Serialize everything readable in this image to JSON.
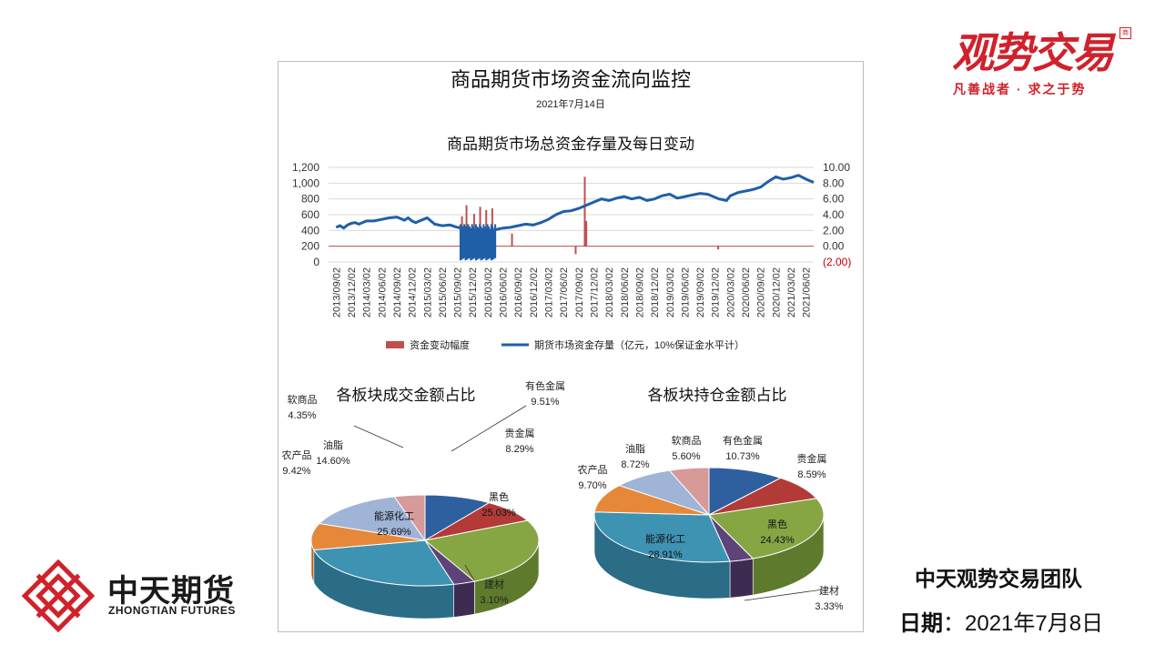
{
  "brand": {
    "name": "观势交易",
    "slogan": "凡善战者 · 求之于势",
    "tm": "商"
  },
  "company": {
    "name_cn": "中天期货",
    "name_en": "ZHONGTIAN FUTURES"
  },
  "footer": {
    "team": "中天观势交易团队",
    "date_label": "日期",
    "date_sep": "：",
    "date_value": "2021年7月8日"
  },
  "report": {
    "title": "商品期货市场资金流向监控",
    "date": "2021年7月14日"
  },
  "colors": {
    "brand_red": "#d1212b",
    "line_blue": "#1f5fa8",
    "bar_red": "#c0504d"
  },
  "chart_data": [
    {
      "type": "line",
      "title": "商品期货市场总资金存量及每日变动",
      "x_ticks": [
        "2013/09/02",
        "2013/12/02",
        "2014/03/02",
        "2014/06/02",
        "2014/09/02",
        "2014/12/02",
        "2015/03/02",
        "2015/06/02",
        "2015/09/02",
        "2015/12/02",
        "2016/03/02",
        "2016/06/02",
        "2016/09/02",
        "2016/12/02",
        "2017/03/02",
        "2017/06/02",
        "2017/09/02",
        "2017/12/02",
        "2018/03/02",
        "2018/06/02",
        "2018/09/02",
        "2018/12/02",
        "2019/03/02",
        "2019/06/02",
        "2019/09/02",
        "2019/12/02",
        "2020/03/02",
        "2020/06/02",
        "2020/09/02",
        "2020/12/02",
        "2021/03/02",
        "2021/06/02"
      ],
      "y_left": {
        "ticks": [
          "0",
          "200",
          "400",
          "600",
          "800",
          "1,000",
          "1,200"
        ],
        "ylim": [
          0,
          1200
        ]
      },
      "y_right": {
        "ticks": [
          "(2.00)",
          "0.00",
          "2.00",
          "4.00",
          "6.00",
          "8.00",
          "10.00"
        ],
        "ylim": [
          -2,
          10
        ]
      },
      "legend": [
        "资金变动幅度",
        "期货市场资金存量（亿元，10%保证金水平计）"
      ],
      "series": [
        {
          "name": "期货市场资金存量（亿元，10%保证金水平计）",
          "axis": "left",
          "x": [
            0,
            0.25,
            0.5,
            0.75,
            1,
            1.25,
            1.5,
            2,
            2.5,
            3,
            3.5,
            4,
            4.25,
            4.5,
            4.75,
            5,
            5.25,
            5.5,
            5.75,
            6,
            6.25,
            6.5,
            7,
            7.5,
            8,
            8.25,
            8.5,
            9,
            9.5,
            10,
            10.5,
            11,
            11.5,
            12,
            12.5,
            13,
            13.5,
            14,
            14.5,
            15,
            15.5,
            16,
            16.5,
            17,
            17.5,
            18,
            18.5,
            19,
            19.5,
            20,
            20.5,
            21,
            21.25,
            21.5,
            22,
            22.5,
            23,
            23.5,
            24,
            24.5,
            25,
            25.25,
            25.5,
            25.75,
            26,
            26.5,
            27,
            27.5,
            28,
            28.5,
            29,
            29.5,
            30,
            30.5,
            31,
            31.5
          ],
          "values": [
            440,
            460,
            430,
            470,
            490,
            500,
            480,
            520,
            520,
            540,
            560,
            570,
            550,
            530,
            560,
            520,
            500,
            520,
            540,
            560,
            520,
            480,
            460,
            470,
            440,
            430,
            440,
            400,
            420,
            380,
            410,
            430,
            440,
            460,
            480,
            470,
            500,
            540,
            600,
            640,
            650,
            680,
            720,
            760,
            800,
            780,
            810,
            830,
            800,
            820,
            780,
            800,
            820,
            840,
            860,
            810,
            830,
            850,
            870,
            860,
            820,
            800,
            790,
            780,
            840,
            880,
            900,
            920,
            950,
            1020,
            1080,
            1050,
            1070,
            1100,
            1050,
            1010
          ]
        },
        {
          "name": "资金变动幅度",
          "axis": "right",
          "note": "daily changes near 0, large spikes ~2015/08–2016/03 and a single spike ~2017/12"
        }
      ]
    },
    {
      "type": "pie",
      "title": "各板块成交金额占比",
      "slices": [
        {
          "label": "有色金属",
          "value": 9.51,
          "display": "9.51%"
        },
        {
          "label": "贵金属",
          "value": 8.29,
          "display": "8.29%"
        },
        {
          "label": "黑色",
          "value": 25.03,
          "display": "25.03%"
        },
        {
          "label": "建材",
          "value": 3.1,
          "display": "3.10%"
        },
        {
          "label": "能源化工",
          "value": 25.69,
          "display": "25.69%"
        },
        {
          "label": "农产品",
          "value": 9.42,
          "display": "9.42%"
        },
        {
          "label": "油脂",
          "value": 14.6,
          "display": "14.60%"
        },
        {
          "label": "软商品",
          "value": 4.35,
          "display": "4.35%"
        }
      ]
    },
    {
      "type": "pie",
      "title": "各板块持仓金额占比",
      "slices": [
        {
          "label": "有色金属",
          "value": 10.73,
          "display": "10.73%"
        },
        {
          "label": "贵金属",
          "value": 8.59,
          "display": "8.59%"
        },
        {
          "label": "黑色",
          "value": 24.43,
          "display": "24.43%"
        },
        {
          "label": "建材",
          "value": 3.33,
          "display": "3.33%"
        },
        {
          "label": "能源化工",
          "value": 28.91,
          "display": "28.91%"
        },
        {
          "label": "农产品",
          "value": 9.7,
          "display": "9.70%"
        },
        {
          "label": "油脂",
          "value": 8.72,
          "display": "8.72%"
        },
        {
          "label": "软商品",
          "value": 5.6,
          "display": "5.60%"
        }
      ]
    }
  ]
}
